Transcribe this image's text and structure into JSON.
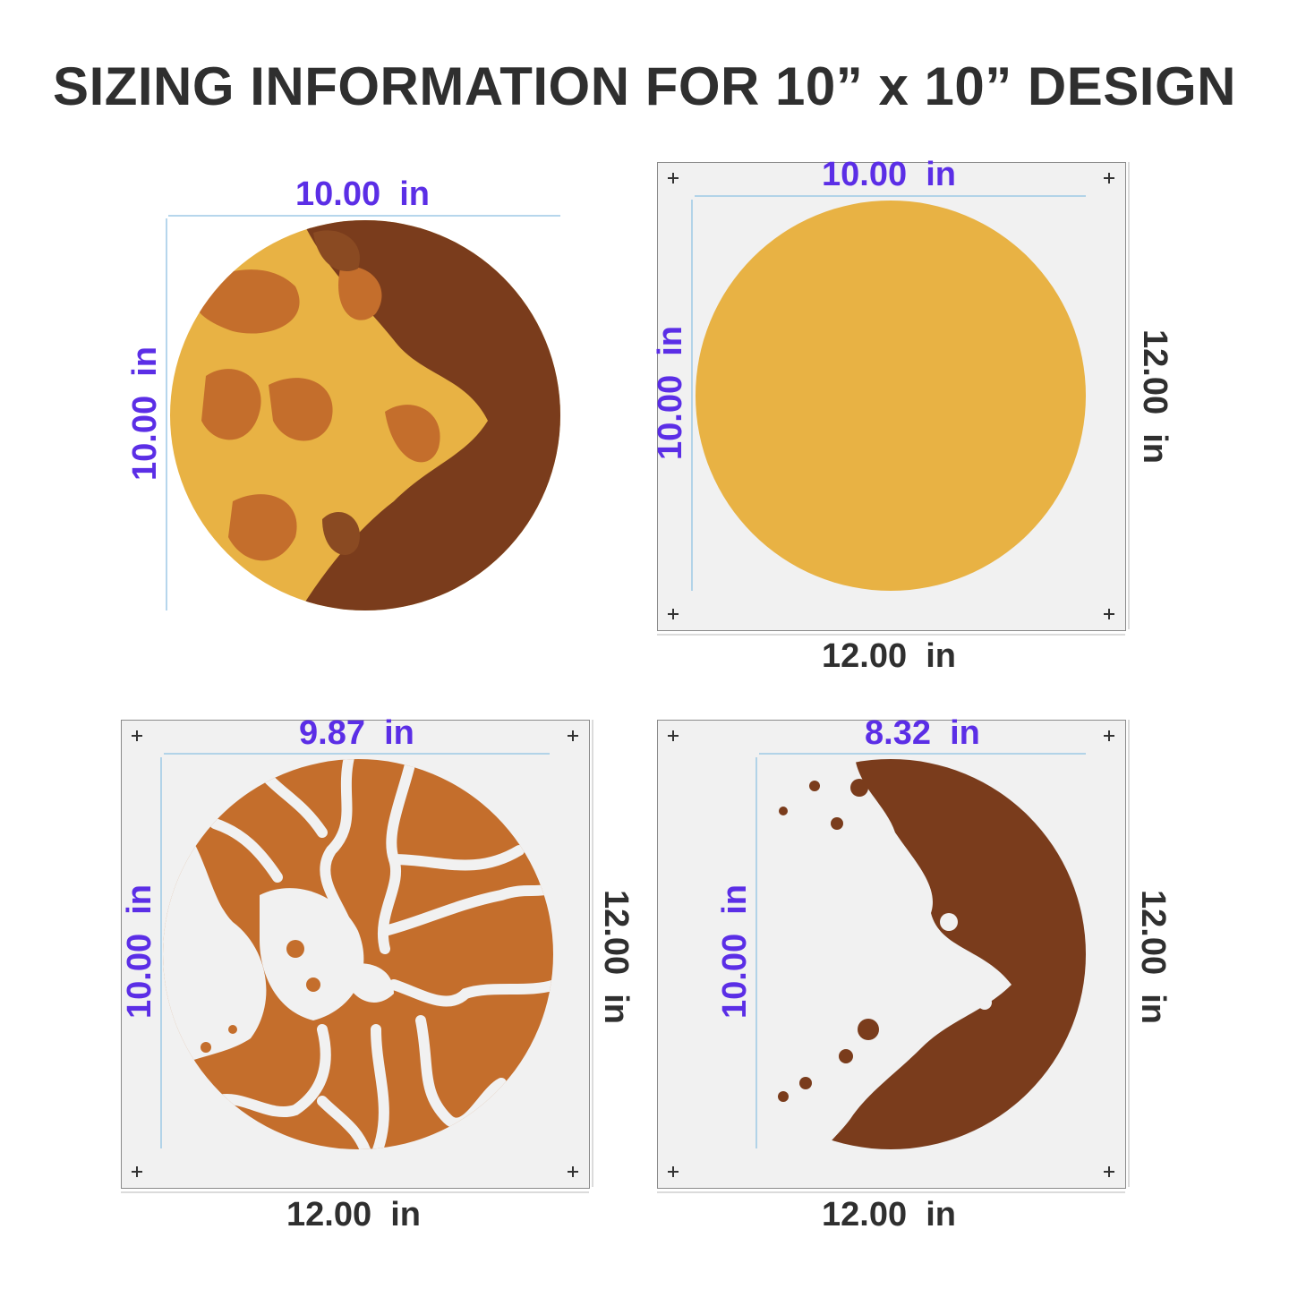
{
  "title": "SIZING INFORMATION FOR 10” x 10” DESIGN",
  "colors": {
    "accent": "#5b2ee6",
    "dark_brown": "#7a3c1c",
    "mid_orange": "#c46e2c",
    "light_gold": "#e8b244",
    "sheet": "#f1f1f1",
    "dim_line": "#9ec9e6"
  },
  "panels": [
    {
      "name": "full-design",
      "width_label": "10.00  in",
      "height_label": "10.00  in"
    },
    {
      "name": "gold-layer",
      "width_label": "10.00  in",
      "height_label": "10.00  in",
      "sheet_width_label": "12.00  in",
      "sheet_height_label": "12.00  in"
    },
    {
      "name": "orange-layer",
      "width_label": "9.87  in",
      "height_label": "10.00  in",
      "sheet_width_label": "12.00  in",
      "sheet_height_label": "12.00  in"
    },
    {
      "name": "brown-layer",
      "width_label": "8.32  in",
      "height_label": "10.00  in",
      "sheet_width_label": "12.00  in",
      "sheet_height_label": "12.00  in"
    }
  ]
}
